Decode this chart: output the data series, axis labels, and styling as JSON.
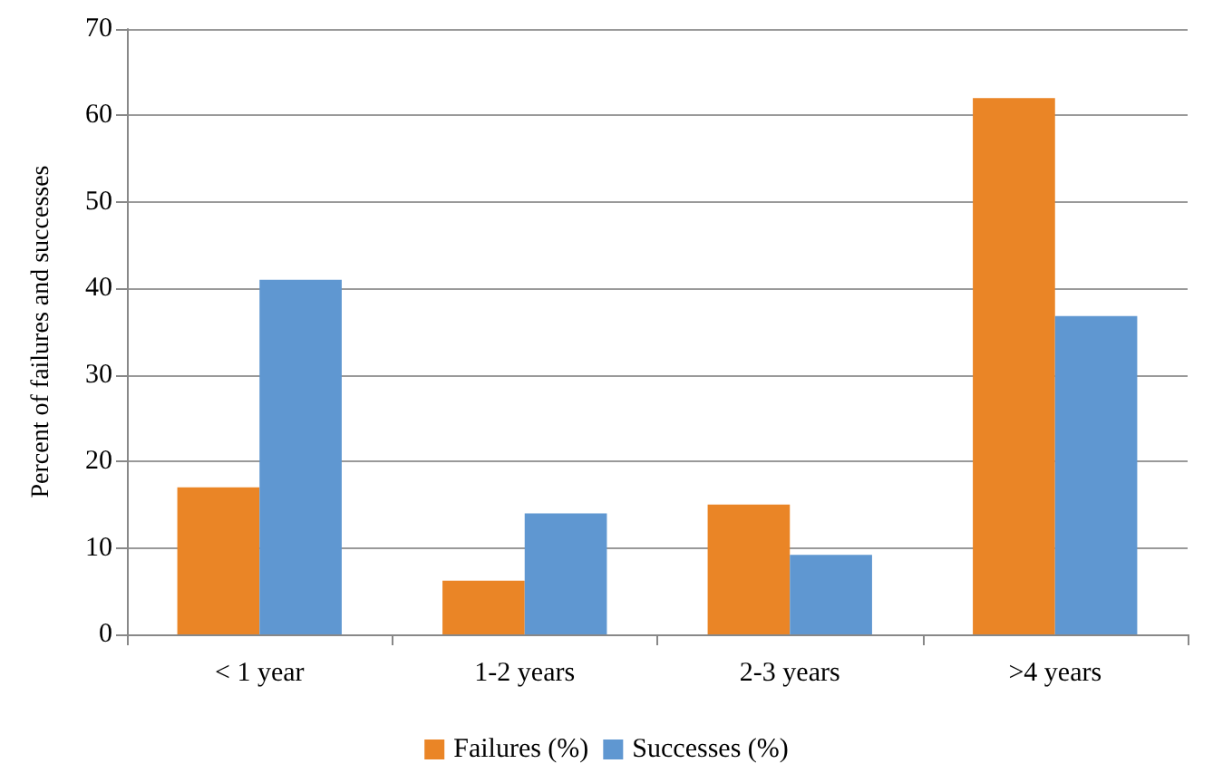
{
  "chart_data": {
    "type": "bar",
    "ylabel": "Percent of failures and successes",
    "categories": [
      "< 1 year",
      "1-2 years",
      "2-3 years",
      ">4 years"
    ],
    "series": [
      {
        "name": "Failures (%)",
        "color": "#ea8526",
        "values": [
          17,
          6.2,
          15,
          62
        ]
      },
      {
        "name": "Successes (%)",
        "color": "#5f97d1",
        "values": [
          41,
          14,
          9.2,
          36.8
        ]
      }
    ],
    "ylim": [
      0,
      70
    ],
    "yticks": [
      0,
      10,
      20,
      30,
      40,
      50,
      60,
      70
    ],
    "grid": "y",
    "legend": "bottom"
  }
}
